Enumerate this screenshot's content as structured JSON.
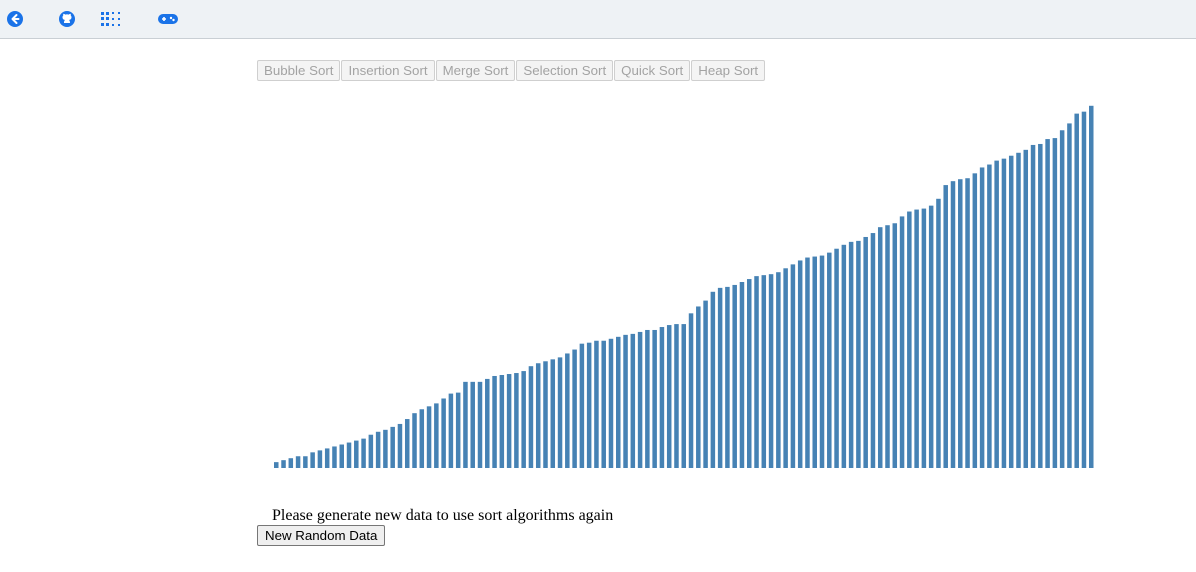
{
  "topbar": {
    "icons": [
      "back-arrow-icon",
      "github-icon",
      "apps-grid-icon",
      "gamepad-icon"
    ],
    "accent_color": "#1a73e8"
  },
  "sort_buttons": [
    "Bubble Sort",
    "Insertion Sort",
    "Merge Sort",
    "Selection Sort",
    "Quick Sort",
    "Heap Sort"
  ],
  "sort_buttons_disabled": true,
  "message": "Please generate new data to use sort algorithms again",
  "new_data_button": "New Random Data",
  "chart_data": {
    "type": "bar",
    "bar_color": "#4682b4",
    "sorted": true,
    "values": [
      6,
      8,
      10,
      12,
      12,
      16,
      18,
      20,
      22,
      24,
      26,
      28,
      30,
      34,
      37,
      39,
      42,
      45,
      50,
      56,
      60,
      63,
      66,
      71,
      76,
      77,
      88,
      88,
      88,
      91,
      94,
      95,
      96,
      97,
      99,
      104,
      107,
      109,
      111,
      113,
      117,
      121,
      127,
      128,
      130,
      130,
      132,
      134,
      136,
      137,
      139,
      141,
      141,
      144,
      146,
      147,
      147,
      158,
      165,
      171,
      180,
      184,
      185,
      187,
      190,
      193,
      196,
      197,
      198,
      200,
      204,
      208,
      212,
      215,
      216,
      217,
      220,
      224,
      228,
      231,
      232,
      236,
      240,
      246,
      248,
      250,
      257,
      262,
      264,
      265,
      268,
      275,
      289,
      293,
      295,
      296,
      301,
      307,
      310,
      314,
      316,
      319,
      322,
      325,
      330,
      331,
      336,
      337,
      345,
      352,
      362,
      364,
      370
    ],
    "ylim": [
      0,
      380
    ]
  }
}
